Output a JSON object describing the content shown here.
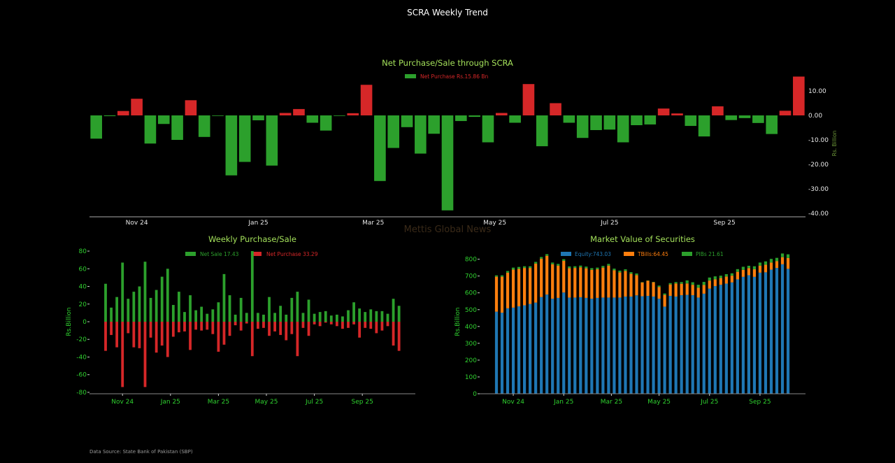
{
  "page": {
    "title": "SCRA Weekly Trend",
    "watermark": "Mettis Global News",
    "footer": "Data Source: State Bank of Pakistan (SBP)"
  },
  "colors": {
    "sale_green": "#2ca02c",
    "purchase_red": "#d62728",
    "equity_blue": "#1f77b4",
    "tbills_orange": "#ff7f0e",
    "pibs_green": "#2ca02c",
    "title_green": "#a3e05a",
    "tick_green": "#2fd12f"
  },
  "chart_data": [
    {
      "id": "net",
      "type": "bar",
      "title": "Net Purchase/Sale through SCRA",
      "legend": [
        {
          "label": "Net Purchase Rs.15.86 Bn",
          "swatch": "#2ca02c",
          "text_color": "#d62728"
        }
      ],
      "legend_position": "top-center",
      "xlabel": "",
      "ylabel": "Rs. Billion",
      "ylim": [
        -40,
        16
      ],
      "yticks": [
        10,
        0,
        -10,
        -20,
        -30,
        -40
      ],
      "ytick_labels": [
        "10.00",
        "0.00",
        "-10.00",
        "-20.00",
        "-30.00",
        "-40.00"
      ],
      "y_axis_side": "right",
      "xtick_labels": [
        {
          "label": "Nov 24",
          "index": 3
        },
        {
          "label": "Jan 25",
          "index": 12
        },
        {
          "label": "Mar 25",
          "index": 20.5
        },
        {
          "label": "May 25",
          "index": 29.5
        },
        {
          "label": "Jul 25",
          "index": 38
        },
        {
          "label": "Sep 25",
          "index": 46.5
        }
      ],
      "values": [
        -9.5,
        -0.3,
        1.8,
        6.8,
        -11.5,
        -3.5,
        -10,
        6.2,
        -8.8,
        -0.2,
        -24.5,
        -19,
        -2,
        -20.5,
        1,
        2.6,
        -3,
        -6.2,
        -0.2,
        0.9,
        12.5,
        -26.8,
        -13.3,
        -4.8,
        -15.6,
        -7.5,
        -38.8,
        -2.3,
        -0.6,
        -11,
        1,
        -3,
        12.8,
        -12.6,
        5,
        -3,
        -9.2,
        -6,
        -5.8,
        -11,
        -4,
        -3.7,
        2.8,
        0.8,
        -4.3,
        -8.6,
        3.7,
        -1.9,
        -1.1,
        -3.1,
        -7.6,
        1.9,
        15.86
      ]
    },
    {
      "id": "weekly",
      "type": "bar",
      "title": "Weekly Purchase/Sale",
      "legend": [
        {
          "label": "Net Sale 17.43",
          "swatch": "#2ca02c",
          "text_color": "#2ca02c"
        },
        {
          "label": "Net Purchase 33.29",
          "swatch": "#d62728",
          "text_color": "#d62728"
        }
      ],
      "legend_position": "top-center",
      "xlabel": "",
      "ylabel": "Rs.Billion",
      "ylim": [
        -80,
        80
      ],
      "yticks": [
        80,
        60,
        40,
        20,
        0,
        -20,
        -40,
        -60,
        -80
      ],
      "xtick_labels": [
        {
          "label": "Nov 24",
          "index": 3
        },
        {
          "label": "Jan 25",
          "index": 11.5
        },
        {
          "label": "Mar 25",
          "index": 20
        },
        {
          "label": "May 25",
          "index": 28.5
        },
        {
          "label": "Jul 25",
          "index": 37
        },
        {
          "label": "Sep 25",
          "index": 45.5
        }
      ],
      "series": [
        {
          "name": "Net Sale",
          "values": [
            43,
            16,
            28,
            67,
            26,
            34,
            40,
            68,
            27,
            36,
            51,
            60,
            19,
            34,
            11,
            30,
            13,
            17,
            9,
            14,
            22,
            54,
            30,
            8,
            27,
            10,
            80,
            10,
            8,
            28,
            10,
            18,
            8,
            27,
            34,
            10,
            25,
            9,
            11,
            12,
            7,
            8,
            6,
            13,
            22,
            15,
            11,
            14,
            12,
            12,
            9,
            26,
            18
          ]
        },
        {
          "name": "Net Purchase",
          "values": [
            -33,
            -15,
            -29,
            -74,
            -13,
            -29,
            -30,
            -74,
            -18,
            -35,
            -27,
            -40,
            -17,
            -12,
            -11,
            -32,
            -9,
            -10,
            -9,
            -14,
            -34,
            -26,
            -16,
            -4,
            -10,
            -2,
            -39,
            -8,
            -7,
            -16,
            -11,
            -15,
            -21,
            -14,
            -39,
            -7,
            -16,
            -3,
            -5,
            -1,
            -3,
            -5,
            -8,
            -7,
            -3,
            -18,
            -7,
            -8,
            -13,
            -10,
            -5,
            -27,
            -33
          ]
        }
      ]
    },
    {
      "id": "market",
      "type": "bar",
      "stacked": true,
      "title": "Market Value of Securities",
      "legend": [
        {
          "label": "Equity:743.03",
          "swatch": "#1f77b4",
          "text_color": "#1f77b4"
        },
        {
          "label": "TBills:64.45",
          "swatch": "#ff7f0e",
          "text_color": "#ff7f0e"
        },
        {
          "label": "PIBs 21.61",
          "swatch": "#2ca02c",
          "text_color": "#2ca02c"
        }
      ],
      "legend_position": "top-center",
      "xlabel": "",
      "ylabel": "Rs.Billion",
      "ylim": [
        0,
        830
      ],
      "yticks": [
        0,
        100,
        200,
        300,
        400,
        500,
        600,
        700,
        800
      ],
      "xtick_labels": [
        {
          "label": "Nov 24",
          "index": 3
        },
        {
          "label": "Jan 25",
          "index": 12
        },
        {
          "label": "Mar 25",
          "index": 20.5
        },
        {
          "label": "May 25",
          "index": 29
        },
        {
          "label": "Jul 25",
          "index": 38
        },
        {
          "label": "Sep 25",
          "index": 47
        }
      ],
      "series": [
        {
          "name": "Equity",
          "values": [
            488,
            482,
            508,
            512,
            520,
            526,
            534,
            542,
            575,
            590,
            565,
            570,
            602,
            572,
            572,
            574,
            570,
            565,
            570,
            572,
            572,
            572,
            572,
            578,
            578,
            585,
            580,
            582,
            578,
            565,
            518,
            582,
            578,
            586,
            588,
            586,
            572,
            595,
            625,
            640,
            648,
            655,
            662,
            680,
            695,
            705,
            695,
            720,
            722,
            738,
            748,
            770,
            743
          ]
        },
        {
          "name": "TBills",
          "values": [
            208,
            214,
            212,
            226,
            222,
            222,
            214,
            232,
            228,
            230,
            205,
            192,
            188,
            175,
            176,
            178,
            176,
            172,
            170,
            178,
            190,
            162,
            150,
            152,
            135,
            120,
            82,
            90,
            85,
            70,
            70,
            68,
            78,
            68,
            68,
            62,
            58,
            52,
            48,
            40,
            40,
            42,
            40,
            45,
            42,
            42,
            45,
            42,
            45,
            42,
            40,
            42,
            64
          ]
        },
        {
          "name": "PIBs",
          "values": [
            8,
            8,
            10,
            12,
            12,
            10,
            10,
            10,
            10,
            10,
            10,
            10,
            10,
            10,
            10,
            10,
            10,
            10,
            10,
            10,
            10,
            10,
            10,
            10,
            10,
            10,
            2,
            2,
            2,
            8,
            8,
            8,
            8,
            10,
            18,
            15,
            18,
            18,
            18,
            18,
            14,
            14,
            14,
            16,
            18,
            14,
            18,
            18,
            20,
            22,
            20,
            22,
            22
          ]
        }
      ]
    }
  ]
}
